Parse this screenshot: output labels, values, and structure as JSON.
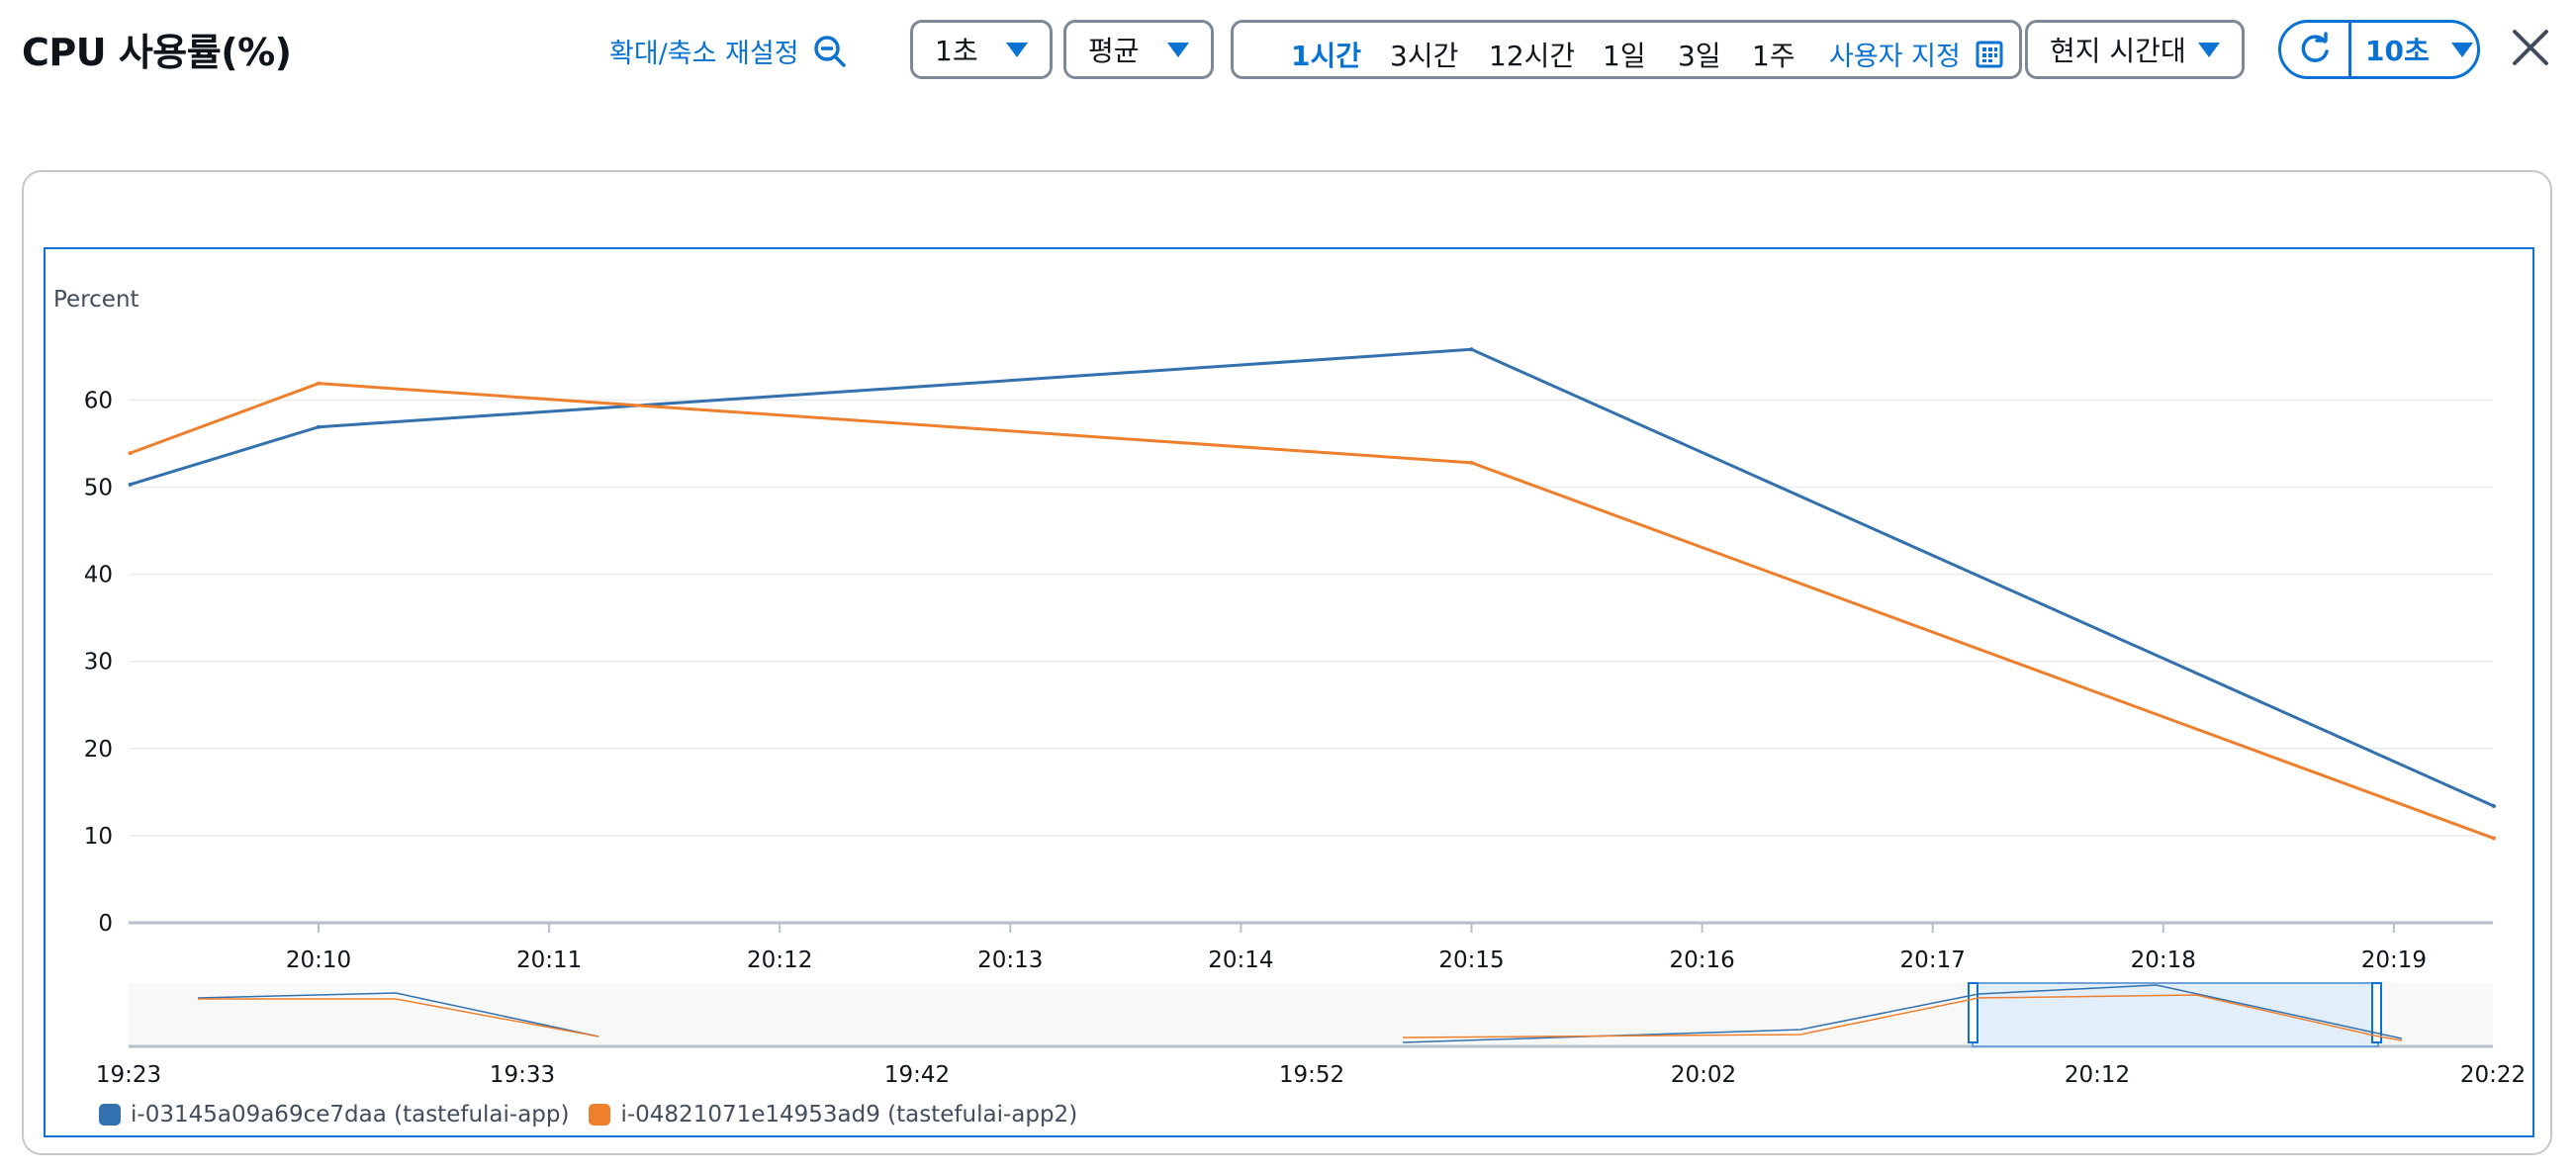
{
  "header": {
    "title": "CPU 사용률(%)",
    "reset_zoom_label": "확대/축소 재설정",
    "period_select": "1초",
    "statistic_select": "평균",
    "time_ranges": [
      "1시간",
      "3시간",
      "12시간",
      "1일",
      "3일",
      "1주"
    ],
    "active_time_range": "1시간",
    "custom_label": "사용자 지정",
    "timezone_select": "현지 시간대",
    "refresh_interval": "10초"
  },
  "colors": {
    "accent": "#0972d3",
    "series1": "#3271ad",
    "series2": "#ee7f2d"
  },
  "chart_data": {
    "type": "line",
    "ylabel": "Percent",
    "ylim": [
      0,
      70
    ],
    "yticks": [
      "0",
      "10",
      "20",
      "30",
      "40",
      "50",
      "60"
    ],
    "x_tick_labels": [
      "20:10",
      "20:11",
      "20:12",
      "20:13",
      "20:14",
      "20:15",
      "20:16",
      "20:17",
      "20:18",
      "20:19"
    ],
    "x": [
      "20:09:11",
      "20:10",
      "20:15",
      "20:19:26"
    ],
    "series": [
      {
        "name": "i-03145a09a69ce7daa (tastefulai-app)",
        "color": "#3271ad",
        "values": [
          50.3,
          56.9,
          65.8,
          13.4
        ]
      },
      {
        "name": "i-04821071e14953ad9 (tastefulai-app2)",
        "color": "#ee7f2d",
        "values": [
          53.9,
          61.9,
          52.8,
          9.7
        ]
      }
    ],
    "navigator": {
      "tick_labels": [
        "19:23",
        "19:33",
        "19:42",
        "19:52",
        "20:02",
        "20:12",
        "20:22"
      ]
    }
  }
}
